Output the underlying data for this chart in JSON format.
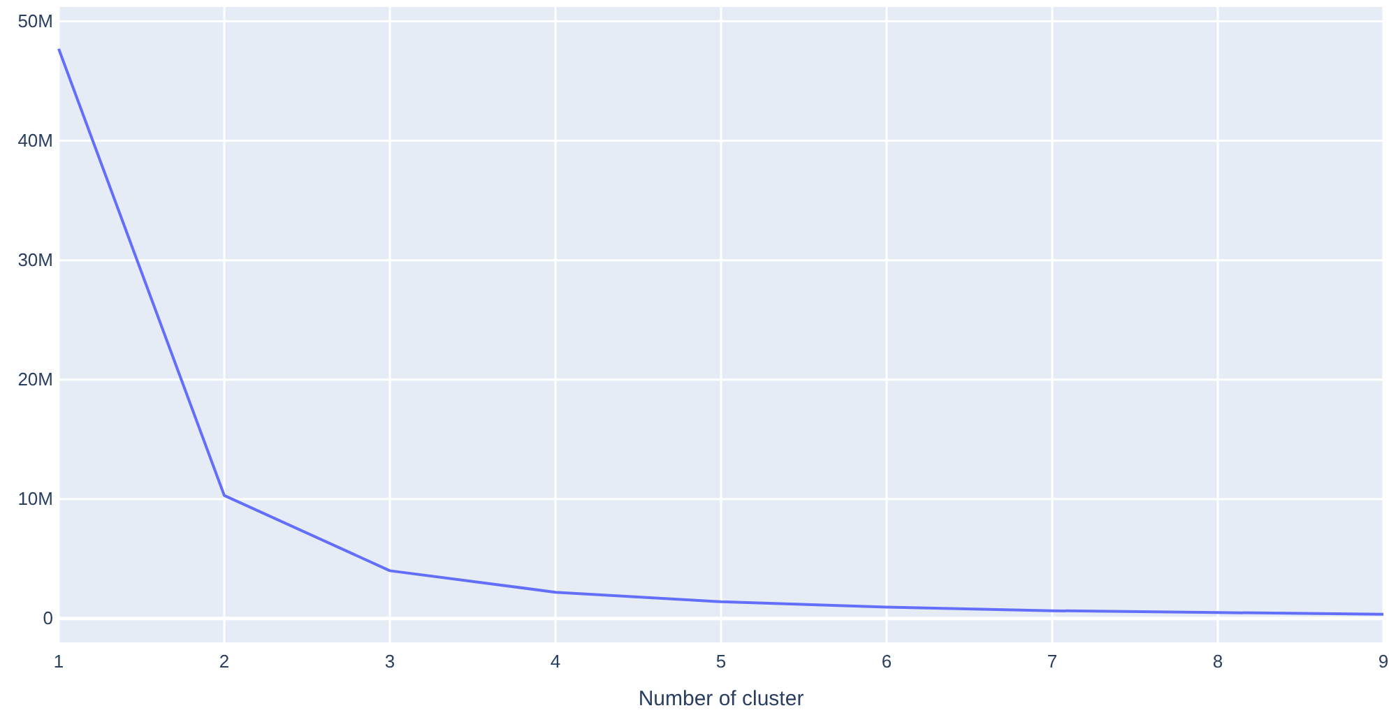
{
  "chart_data": {
    "type": "line",
    "xlabel": "Number of cluster",
    "x": [
      1,
      2,
      3,
      4,
      5,
      6,
      7,
      8,
      9
    ],
    "series": [
      {
        "color": "#636efa",
        "values": [
          47700000,
          10300000,
          4000000,
          2200000,
          1400000,
          950000,
          650000,
          500000,
          350000
        ]
      }
    ],
    "xlim": [
      1,
      9
    ],
    "xticks": [
      1,
      2,
      3,
      4,
      5,
      6,
      7,
      8,
      9
    ],
    "ylim": [
      -2000000,
      51200000
    ],
    "yticks": [
      {
        "value": 0,
        "label": "0"
      },
      {
        "value": 10000000,
        "label": "10M"
      },
      {
        "value": 20000000,
        "label": "20M"
      },
      {
        "value": 30000000,
        "label": "30M"
      },
      {
        "value": 40000000,
        "label": "40M"
      },
      {
        "value": 50000000,
        "label": "50M"
      }
    ],
    "grid": true,
    "marker": "none",
    "line_style": "solid"
  }
}
